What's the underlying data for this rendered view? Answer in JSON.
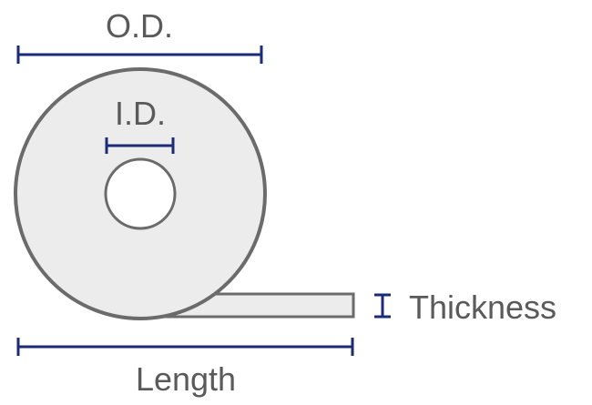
{
  "labels": {
    "outer_diameter": "O.D.",
    "inner_diameter": "I.D.",
    "thickness": "Thickness",
    "length": "Length"
  },
  "colors": {
    "outline": "#6b6b6b",
    "fill": "#ececec",
    "dimension_line": "#1c2b78",
    "text": "#5a5a5a",
    "background": "#ffffff"
  }
}
